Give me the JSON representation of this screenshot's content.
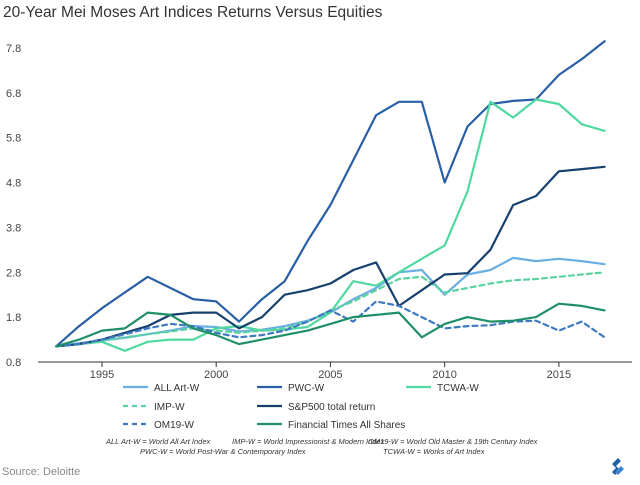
{
  "title": "20-Year Mei Moses Art Indices Returns Versus Equities",
  "source": "Source: Deloitte",
  "notes": [
    "ALL Art-W = World All Art Index",
    "IMP-W = World Impressionist & Modern Index",
    "OM19-W = World Old Master & 19th Century Index",
    "PWC-W = World Post-War & Contemporary Index",
    "TCWA-W = Works of Art Index"
  ],
  "logo_icon": "toptal-logo-icon",
  "chart_data": {
    "type": "line",
    "title": "20-Year Mei Moses Art Indices Returns Versus Equities",
    "xlabel": "",
    "ylabel": "",
    "xlim": [
      1992.2,
      2018.2
    ],
    "ylim": [
      0.8,
      8.2
    ],
    "xticks": [
      1995,
      2000,
      2005,
      2010,
      2015
    ],
    "yticks": [
      0.8,
      1.8,
      2.8,
      3.8,
      4.8,
      5.8,
      6.8,
      7.8
    ],
    "ytick_labels": [
      "0.8",
      "1.8",
      "2.8",
      "3.8",
      "4.8",
      "5.8",
      "6.8",
      "7.8"
    ],
    "grid": false,
    "legend": "bottom",
    "series": [
      {
        "name": "ALL Art-W",
        "color": "#6aaee2",
        "dash": "solid",
        "x": [
          1993,
          1994,
          1995,
          1996,
          1997,
          1998,
          1999,
          2000,
          2001,
          2002,
          2003,
          2004,
          2005,
          2006,
          2007,
          2008,
          2009,
          2010,
          2011,
          2012,
          2013,
          2014,
          2015,
          2016,
          2017
        ],
        "y": [
          1.15,
          1.22,
          1.28,
          1.34,
          1.42,
          1.5,
          1.6,
          1.58,
          1.48,
          1.52,
          1.6,
          1.72,
          1.9,
          2.2,
          2.45,
          2.8,
          2.85,
          2.3,
          2.75,
          2.85,
          3.12,
          3.05,
          3.1,
          3.05,
          2.98
        ]
      },
      {
        "name": "PWC-W",
        "color": "#2a5fa8",
        "dash": "solid",
        "x": [
          1993,
          1994,
          1995,
          1996,
          1997,
          1998,
          1999,
          2000,
          2001,
          2002,
          2003,
          2004,
          2005,
          2006,
          2007,
          2008,
          2009,
          2010,
          2011,
          2012,
          2013,
          2014,
          2015,
          2016,
          2017
        ],
        "y": [
          1.15,
          1.6,
          2.0,
          2.35,
          2.7,
          2.45,
          2.2,
          2.15,
          1.7,
          2.2,
          2.6,
          3.5,
          4.3,
          5.3,
          6.3,
          6.6,
          6.6,
          4.8,
          6.05,
          6.55,
          6.62,
          6.65,
          7.2,
          7.55,
          7.95
        ]
      },
      {
        "name": "TCWA-W",
        "color": "#4fd8a0",
        "dash": "solid",
        "x": [
          1993,
          1994,
          1995,
          1996,
          1997,
          1998,
          1999,
          2000,
          2001,
          2002,
          2003,
          2004,
          2005,
          2006,
          2007,
          2008,
          2009,
          2010,
          2011,
          2012,
          2013,
          2014,
          2015,
          2016,
          2017
        ],
        "y": [
          1.15,
          1.2,
          1.25,
          1.05,
          1.25,
          1.3,
          1.3,
          1.55,
          1.6,
          1.5,
          1.52,
          1.58,
          1.9,
          2.6,
          2.5,
          2.8,
          3.1,
          3.4,
          4.6,
          6.6,
          6.25,
          6.65,
          6.55,
          6.1,
          5.95
        ]
      },
      {
        "name": "IMP-W",
        "color": "#5ad3a0",
        "dash": "dashed",
        "x": [
          1993,
          1994,
          1995,
          1996,
          1997,
          1998,
          1999,
          2000,
          2001,
          2002,
          2003,
          2004,
          2005,
          2006,
          2007,
          2008,
          2009,
          2010,
          2011,
          2012,
          2013,
          2014,
          2015,
          2016,
          2017
        ],
        "y": [
          1.15,
          1.2,
          1.28,
          1.35,
          1.42,
          1.48,
          1.55,
          1.5,
          1.45,
          1.5,
          1.55,
          1.7,
          1.95,
          2.15,
          2.4,
          2.65,
          2.7,
          2.35,
          2.45,
          2.55,
          2.62,
          2.65,
          2.7,
          2.75,
          2.8
        ]
      },
      {
        "name": "S&P500 total return",
        "color": "#17406e",
        "dash": "solid",
        "x": [
          1993,
          1994,
          1995,
          1996,
          1997,
          1998,
          1999,
          2000,
          2001,
          2002,
          2003,
          2004,
          2005,
          2006,
          2007,
          2008,
          2009,
          2010,
          2011,
          2012,
          2013,
          2014,
          2015,
          2016,
          2017
        ],
        "y": [
          1.15,
          1.2,
          1.3,
          1.45,
          1.6,
          1.85,
          1.9,
          1.9,
          1.55,
          1.8,
          2.3,
          2.4,
          2.55,
          2.85,
          3.02,
          2.05,
          2.4,
          2.75,
          2.78,
          3.3,
          4.3,
          4.5,
          5.05,
          5.1,
          5.15
        ]
      },
      {
        "name": "OM19-W",
        "color": "#3f79c0",
        "dash": "dashed",
        "x": [
          1993,
          1994,
          1995,
          1996,
          1997,
          1998,
          1999,
          2000,
          2001,
          2002,
          2003,
          2004,
          2005,
          2006,
          2007,
          2008,
          2009,
          2010,
          2011,
          2012,
          2013,
          2014,
          2015,
          2016,
          2017
        ],
        "y": [
          1.15,
          1.2,
          1.3,
          1.42,
          1.55,
          1.65,
          1.6,
          1.45,
          1.35,
          1.4,
          1.5,
          1.7,
          1.95,
          1.7,
          2.15,
          2.05,
          1.8,
          1.55,
          1.6,
          1.62,
          1.7,
          1.72,
          1.5,
          1.7,
          1.35
        ]
      },
      {
        "name": "Financial Times All Shares",
        "color": "#1f8f67",
        "dash": "solid",
        "x": [
          1993,
          1994,
          1995,
          1996,
          1997,
          1998,
          1999,
          2000,
          2001,
          2002,
          2003,
          2004,
          2005,
          2006,
          2007,
          2008,
          2009,
          2010,
          2011,
          2012,
          2013,
          2014,
          2015,
          2016,
          2017
        ],
        "y": [
          1.15,
          1.3,
          1.5,
          1.55,
          1.9,
          1.85,
          1.55,
          1.4,
          1.2,
          1.3,
          1.4,
          1.5,
          1.65,
          1.8,
          1.85,
          1.9,
          1.35,
          1.65,
          1.8,
          1.7,
          1.72,
          1.8,
          2.1,
          2.05,
          1.95
        ]
      }
    ]
  }
}
